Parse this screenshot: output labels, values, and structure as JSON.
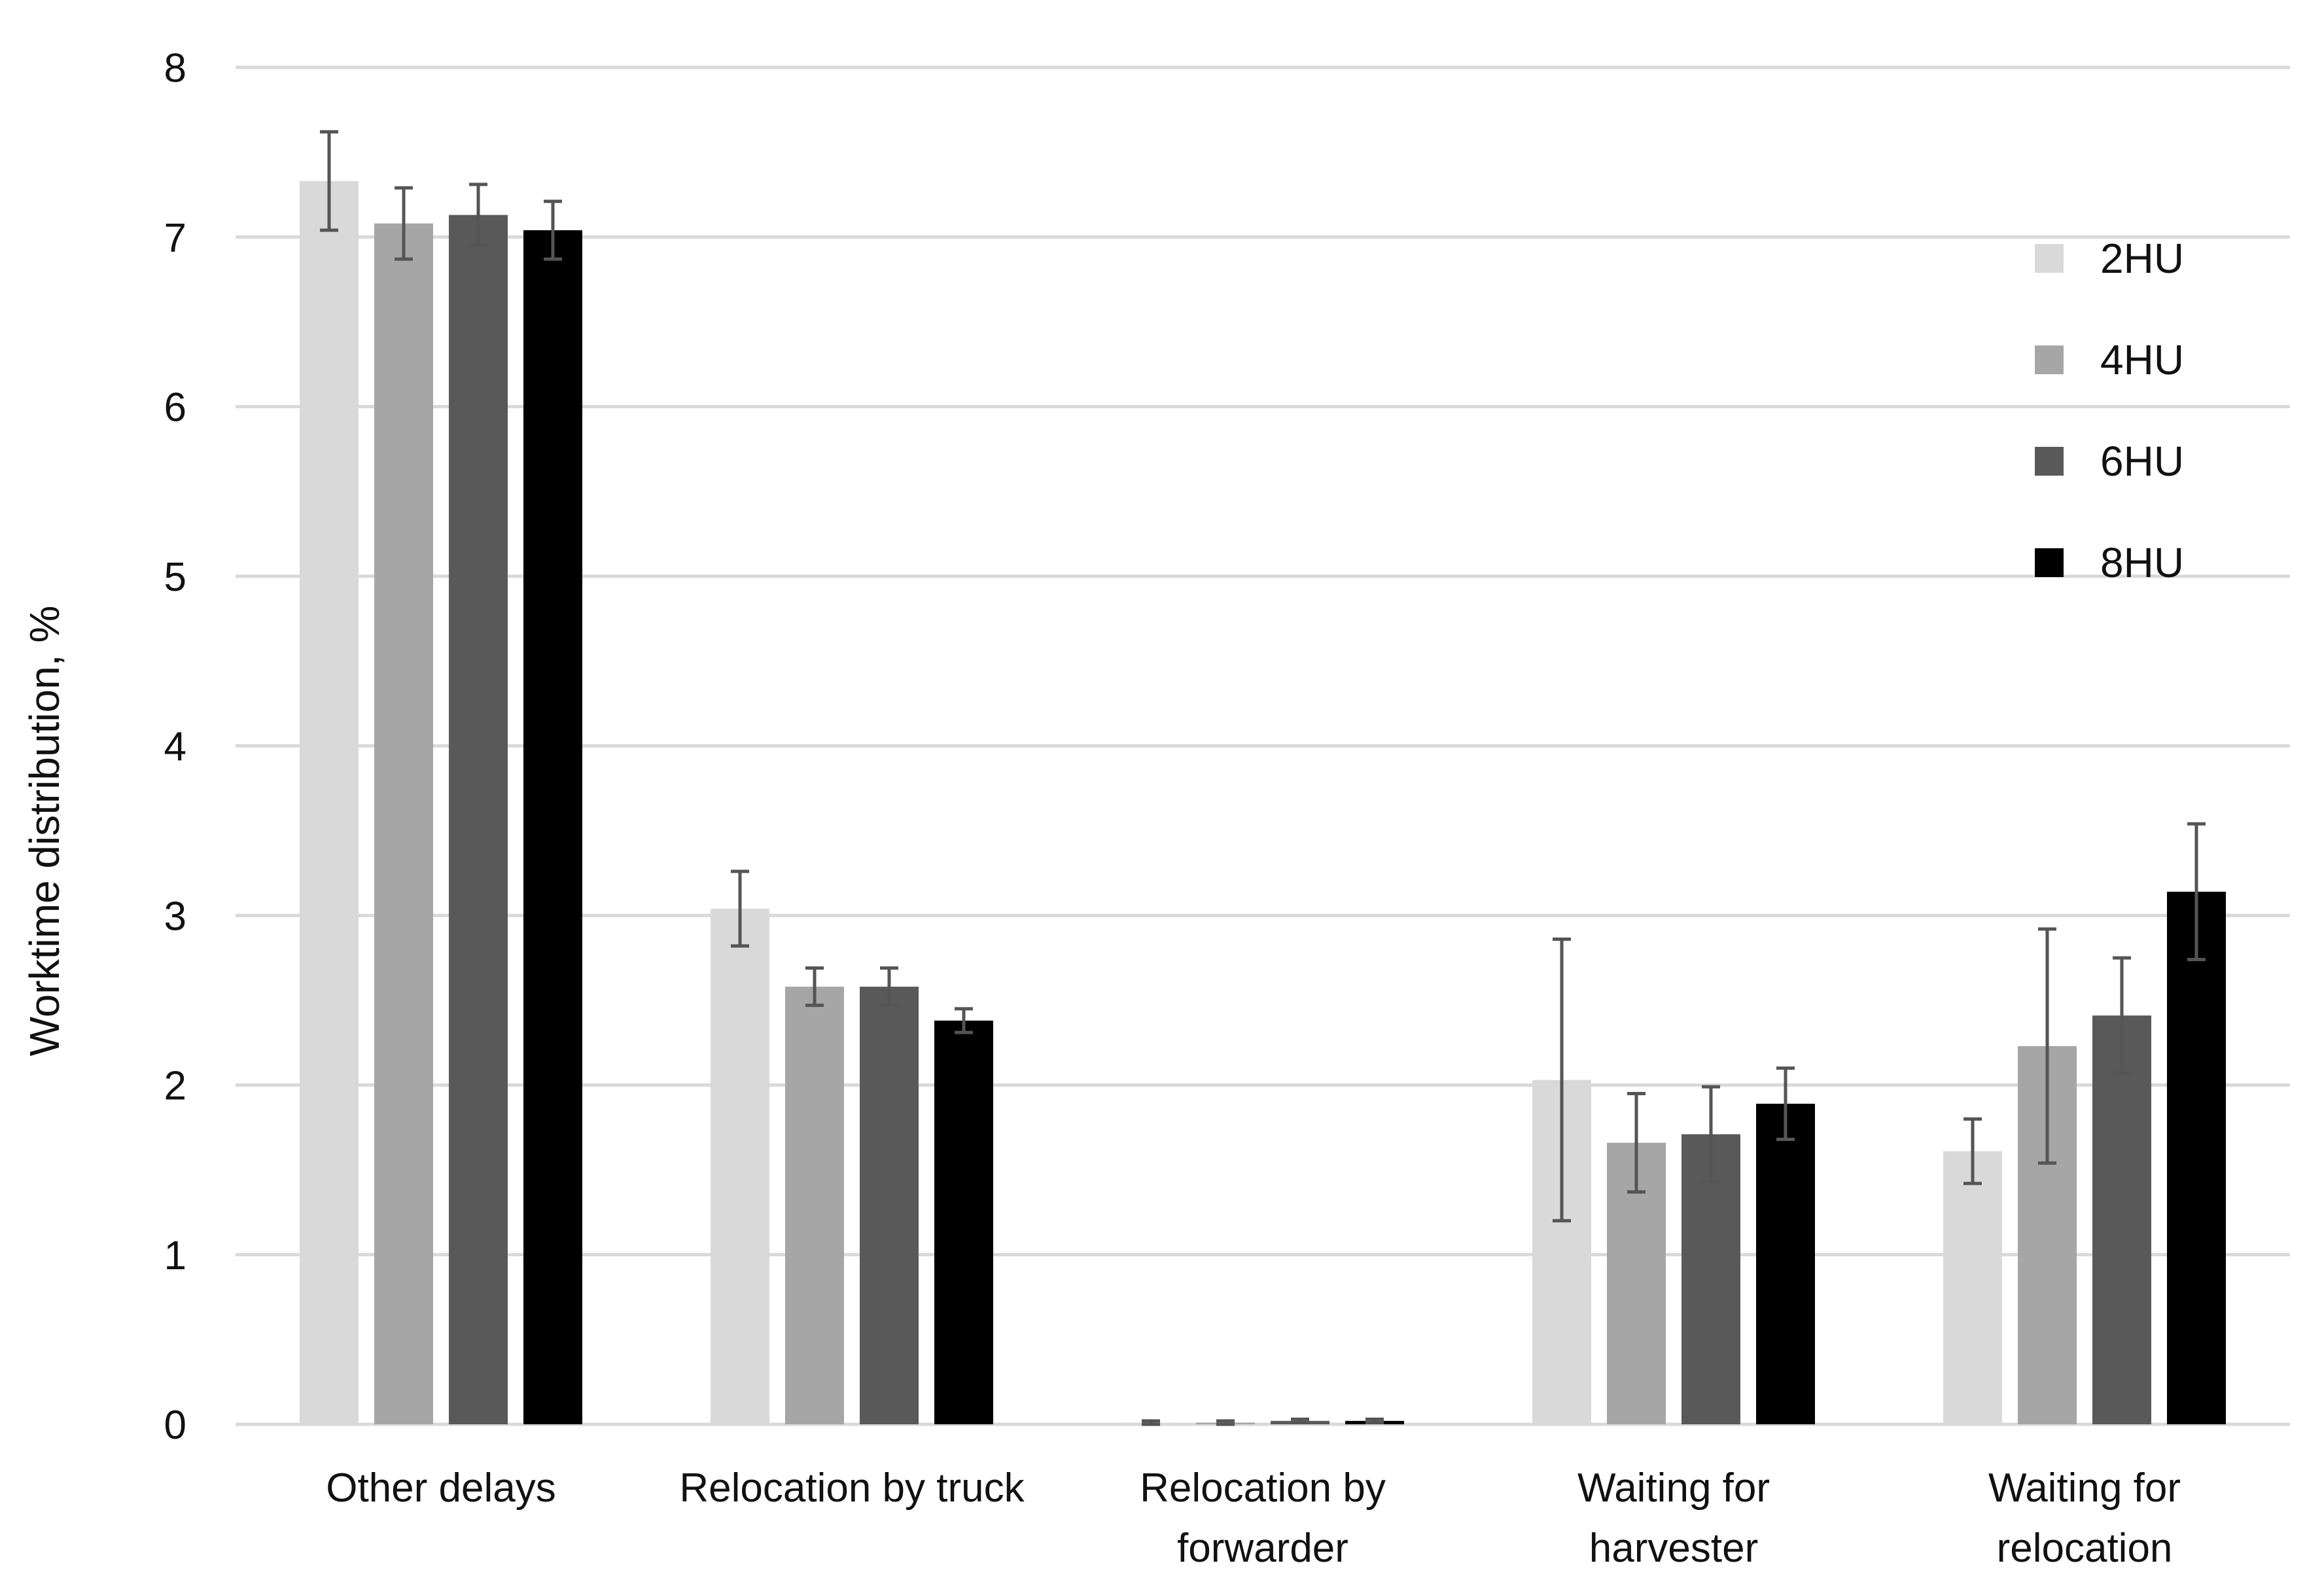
{
  "chart_data": {
    "type": "bar",
    "title": "",
    "xlabel": "",
    "ylabel": "Worktime distribution, %",
    "ylim": [
      0,
      8
    ],
    "yticks": [
      0,
      1,
      2,
      3,
      4,
      5,
      6,
      7,
      8
    ],
    "grid": true,
    "legend_position": "top-right",
    "categories": [
      [
        "Other delays"
      ],
      [
        "Relocation by truck"
      ],
      [
        "Relocation  by",
        "forwarder"
      ],
      [
        "Waiting for",
        "harvester"
      ],
      [
        "Waiting for",
        "relocation"
      ]
    ],
    "series": [
      {
        "name": "2HU",
        "color": "#d9d9d9",
        "values": [
          7.33,
          3.04,
          0.01,
          2.03,
          1.61
        ],
        "errors": [
          0.29,
          0.22,
          0.01,
          0.83,
          0.19
        ]
      },
      {
        "name": "4HU",
        "color": "#a6a6a6",
        "values": [
          7.08,
          2.58,
          0.01,
          1.66,
          2.23
        ],
        "errors": [
          0.21,
          0.11,
          0.01,
          0.29,
          0.69
        ]
      },
      {
        "name": "6HU",
        "color": "#595959",
        "values": [
          7.13,
          2.58,
          0.02,
          1.71,
          2.41
        ],
        "errors": [
          0.18,
          0.11,
          0.01,
          0.28,
          0.34
        ]
      },
      {
        "name": "8HU",
        "color": "#000000",
        "values": [
          7.04,
          2.38,
          0.02,
          1.89,
          3.14
        ],
        "errors": [
          0.17,
          0.07,
          0.01,
          0.21,
          0.4
        ]
      }
    ]
  }
}
